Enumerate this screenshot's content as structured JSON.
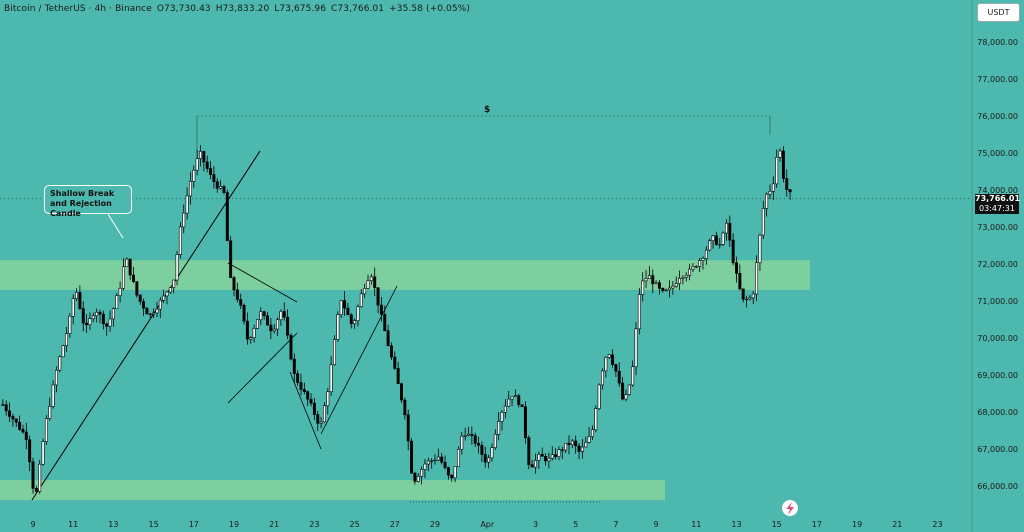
{
  "header": {
    "symbol": "Bitcoin / TetherUS · 4h · Binance",
    "open": "O73,730.43",
    "high": "H73,833.20",
    "low": "L73,675.96",
    "close": "C73,766.01",
    "change": "+35.58 (+0.05%)"
  },
  "currency_button": "USDT",
  "price_tag": {
    "price": "73,766.01",
    "countdown": "03:47:31"
  },
  "annotations": {
    "callout": "Shallow Break and Rejection Candle",
    "target_label": "$"
  },
  "colors": {
    "background": "#4db8ae",
    "zone": "#7dcf9f",
    "candle_up": "#ffffff",
    "candle_down": "#000000"
  },
  "chart_data": {
    "type": "candlestick",
    "ylim": [
      65500,
      78800
    ],
    "yticks": [
      66000,
      67000,
      68000,
      69000,
      70000,
      71000,
      72000,
      73000,
      74000,
      75000,
      76000,
      77000,
      78000
    ],
    "ytick_labels": [
      "66,000.00",
      "67,000.00",
      "68,000.00",
      "69,000.00",
      "70,000.00",
      "71,000.00",
      "72,000.00",
      "73,000.00",
      "74,000.00",
      "75,000.00",
      "76,000.00",
      "77,000.00",
      "78,000.00"
    ],
    "x_labels": [
      "9",
      "11",
      "13",
      "15",
      "17",
      "19",
      "21",
      "23",
      "25",
      "27",
      "29",
      "Apr",
      "3",
      "5",
      "7",
      "9",
      "11",
      "13",
      "15",
      "17",
      "19",
      "21",
      "23"
    ],
    "candles_per_day": 6,
    "last_close": 73766.01,
    "zones": [
      {
        "low": 71300,
        "high": 72100
      },
      {
        "low": 65800,
        "high": 66050
      }
    ],
    "target_level": 76000,
    "key_prices": {
      "day9_low": 65550,
      "day17_high": 75000,
      "day29_low": 65700,
      "day15_high": 76000
    }
  }
}
